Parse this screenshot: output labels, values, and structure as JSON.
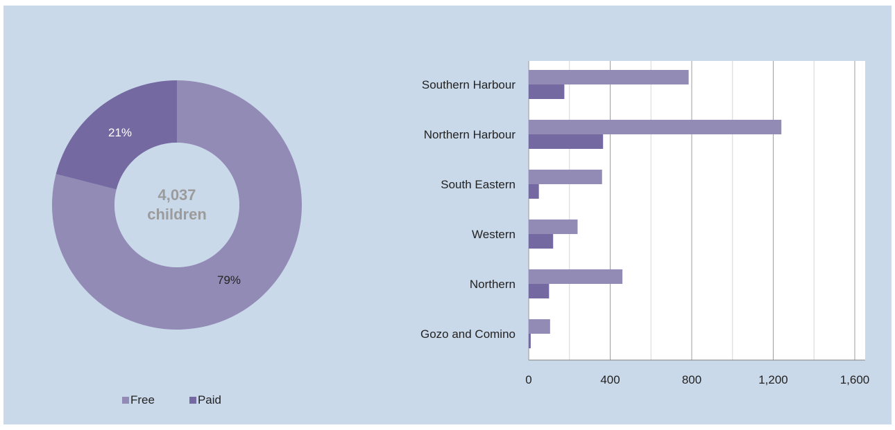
{
  "chart_data": [
    {
      "type": "pie",
      "center_label": [
        "4,037",
        "children"
      ],
      "slices": [
        {
          "name": "Free",
          "value": 79,
          "label": "79%",
          "color": "#928bb5"
        },
        {
          "name": "Paid",
          "value": 21,
          "label": "21%",
          "color": "#7469a0"
        }
      ],
      "legend": "bottom"
    },
    {
      "type": "bar",
      "orientation": "horizontal",
      "categories": [
        "Southern Harbour",
        "Northern Harbour",
        "South Eastern",
        "Western",
        "Northern",
        "Gozo and Comino"
      ],
      "series": [
        {
          "name": "Free",
          "color": "#928bb5",
          "values": [
            785,
            1240,
            360,
            240,
            460,
            105
          ]
        },
        {
          "name": "Paid",
          "color": "#7469a0",
          "values": [
            175,
            365,
            50,
            120,
            100,
            10
          ]
        }
      ],
      "xlim": [
        0,
        1600
      ],
      "xticks": [
        0,
        400,
        800,
        1200,
        1600
      ],
      "xtick_labels": [
        "0",
        "400",
        "800",
        "1,200",
        "1,600"
      ],
      "grid": true
    }
  ],
  "colors": {
    "panel_bg": "#cad9ea",
    "free": "#928bb5",
    "paid": "#7469a0"
  }
}
